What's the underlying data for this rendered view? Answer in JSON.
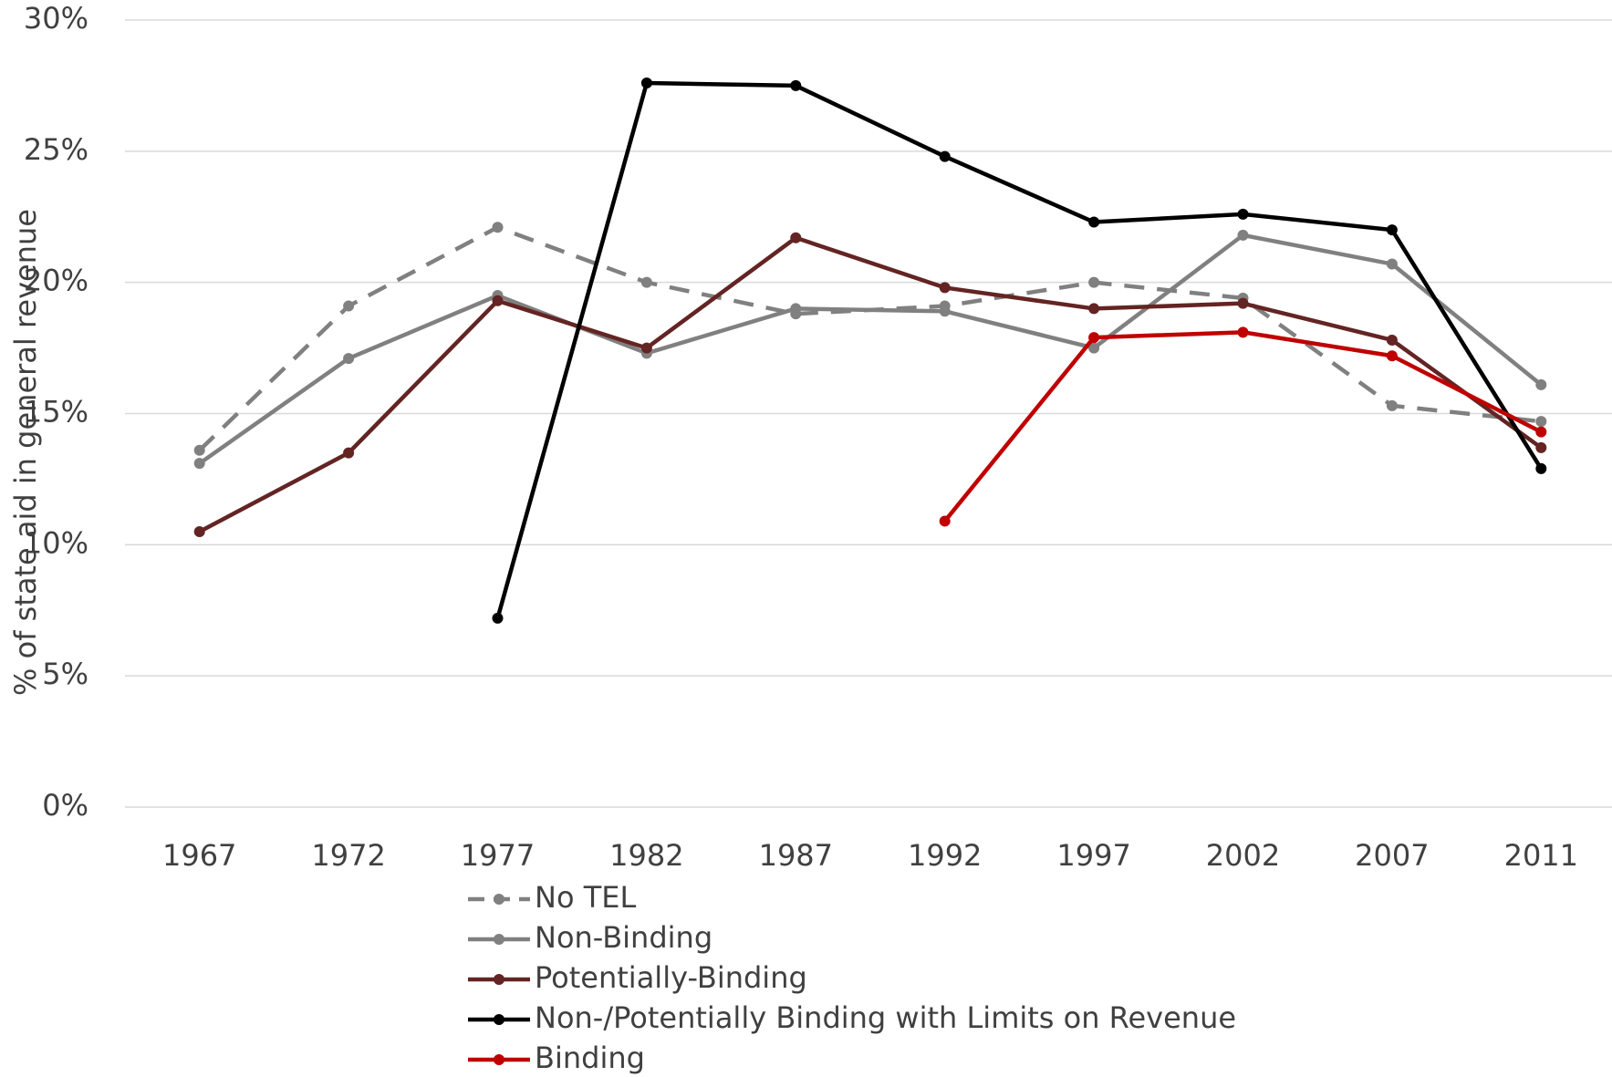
{
  "chart_data": {
    "type": "line",
    "y_axis_label": "% of state aid in general revenue",
    "categories": [
      "1967",
      "1972",
      "1977",
      "1982",
      "1987",
      "1992",
      "1997",
      "2002",
      "2007",
      "2011"
    ],
    "series": [
      {
        "name": "No TEL",
        "color": "#808080",
        "dashed": true,
        "values": [
          13.6,
          19.1,
          22.1,
          20.0,
          18.8,
          19.1,
          20.0,
          19.4,
          15.3,
          14.7
        ]
      },
      {
        "name": "Non-Binding",
        "color": "#808080",
        "values": [
          13.1,
          17.1,
          19.5,
          17.3,
          19.0,
          18.9,
          17.5,
          21.8,
          20.7,
          16.1
        ]
      },
      {
        "name": "Potentially-Binding",
        "color": "#632423",
        "values": [
          10.5,
          13.5,
          19.3,
          17.5,
          21.7,
          19.8,
          19.0,
          19.2,
          17.8,
          13.7
        ]
      },
      {
        "name": "Non-/Potentially Binding with Limits on Revenue",
        "color": "#000000",
        "values": [
          null,
          null,
          7.2,
          27.6,
          27.5,
          24.8,
          22.3,
          22.6,
          22.0,
          12.9
        ]
      },
      {
        "name": "Binding",
        "color": "#c00000",
        "values": [
          null,
          null,
          null,
          null,
          null,
          10.9,
          17.9,
          18.1,
          17.2,
          14.3
        ]
      }
    ],
    "ylim": [
      0,
      30
    ],
    "yticks": [
      {
        "value": 0,
        "label": "0%"
      },
      {
        "value": 5,
        "label": "5%"
      },
      {
        "value": 10,
        "label": "10%"
      },
      {
        "value": 15,
        "label": "15%"
      },
      {
        "value": 20,
        "label": "20%"
      },
      {
        "value": 25,
        "label": "25%"
      },
      {
        "value": 30,
        "label": "30%"
      }
    ],
    "grid": true,
    "legend_position": "bottom"
  }
}
